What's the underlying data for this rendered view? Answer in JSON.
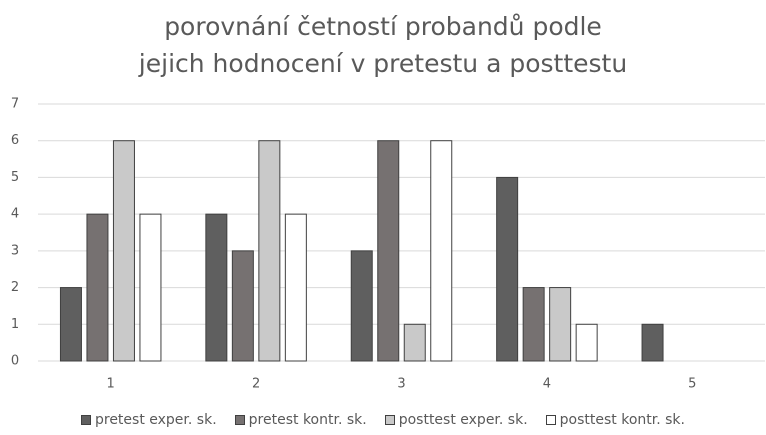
{
  "chart_data": {
    "type": "bar",
    "title": "porovnání četností probandů podle jejich hodnocení v pretestu a posttestu",
    "categories": [
      "1",
      "2",
      "3",
      "4",
      "5"
    ],
    "series": [
      {
        "name": "pretest exper. sk.",
        "color": "#5f5f5f",
        "values": [
          2,
          4,
          3,
          5,
          1
        ]
      },
      {
        "name": "pretest kontr. sk.",
        "color": "#767171",
        "values": [
          4,
          3,
          6,
          2,
          0
        ]
      },
      {
        "name": "posttest exper. sk.",
        "color": "#c9c9c9",
        "values": [
          6,
          6,
          1,
          2,
          0
        ]
      },
      {
        "name": "posttest kontr. sk.",
        "color": "#ffffff",
        "values": [
          4,
          4,
          6,
          1,
          0
        ]
      }
    ],
    "ylim": [
      0,
      7
    ],
    "yticks": [
      0,
      1,
      2,
      3,
      4,
      5,
      6,
      7
    ],
    "grid": true,
    "legend": "bottom"
  }
}
